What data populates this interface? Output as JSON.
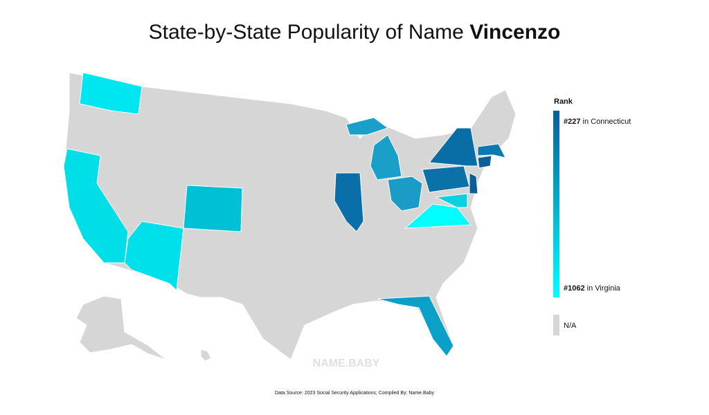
{
  "title": {
    "prefix": "State-by-State Popularity of Name",
    "name": "Vincenzo"
  },
  "legend": {
    "title": "Rank",
    "top": {
      "rank": "#227",
      "label": "in Connecticut",
      "color": "#0a5f96"
    },
    "bottom": {
      "rank": "#1062",
      "label": "in Virginia",
      "color": "#00ffff"
    },
    "na": {
      "label": "N/A",
      "color": "#d6d6d6"
    }
  },
  "watermark": "NAME.BABY",
  "source": "Data Source: 2023 Social Security Applications; Compiled By: Name.Baby"
}
